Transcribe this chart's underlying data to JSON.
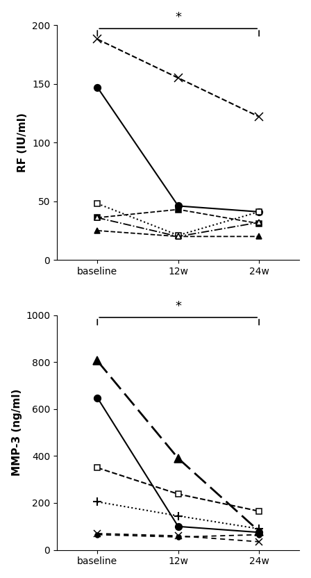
{
  "rf_series": [
    {
      "label": "circle_solid",
      "style": "solid",
      "marker": "o",
      "fillstyle": "full",
      "lw": 1.5,
      "ms": 7,
      "values": [
        147,
        46,
        41
      ]
    },
    {
      "label": "square_filled",
      "style": "dashed",
      "marker": "s",
      "fillstyle": "full",
      "lw": 1.3,
      "ms": 6,
      "values": [
        36,
        43,
        31
      ]
    },
    {
      "label": "square_open",
      "style": "dotted",
      "marker": "s",
      "fillstyle": "none",
      "lw": 1.5,
      "ms": 6,
      "values": [
        48,
        21,
        41
      ]
    },
    {
      "label": "triangle_solid",
      "style": "dashed",
      "marker": "^",
      "fillstyle": "full",
      "lw": 1.3,
      "ms": 6,
      "values": [
        25,
        20,
        20
      ]
    },
    {
      "label": "triangle_open",
      "style": "dashdot",
      "marker": "^",
      "fillstyle": "none",
      "lw": 1.3,
      "ms": 6,
      "values": [
        36,
        20,
        32
      ]
    },
    {
      "label": "x_dashed",
      "style": "dashed",
      "marker": "x",
      "fillstyle": "full",
      "lw": 1.5,
      "ms": 8,
      "values": [
        188,
        155,
        122
      ]
    }
  ],
  "rf_ylim": [
    0,
    200
  ],
  "rf_yticks": [
    0,
    50,
    100,
    150,
    200
  ],
  "rf_ylabel": "RF (IU/ml)",
  "mmp_series": [
    {
      "label": "circle_solid",
      "style": "solid",
      "marker": "o",
      "fillstyle": "full",
      "lw": 1.5,
      "ms": 7,
      "values": [
        648,
        100,
        75
      ]
    },
    {
      "label": "triangle_solid_longdash",
      "style": "longdash",
      "marker": "^",
      "fillstyle": "full",
      "lw": 2.0,
      "ms": 8,
      "values": [
        805,
        390,
        80
      ]
    },
    {
      "label": "square_open_dashed",
      "style": "dashed",
      "marker": "s",
      "fillstyle": "none",
      "lw": 1.5,
      "ms": 6,
      "values": [
        350,
        238,
        165
      ]
    },
    {
      "label": "plus_dotted",
      "style": "dotted",
      "marker": "plus",
      "fillstyle": "full",
      "lw": 1.5,
      "ms": 8,
      "values": [
        205,
        145,
        90
      ]
    },
    {
      "label": "x_dashed_short",
      "style": "shortdash",
      "marker": "x",
      "fillstyle": "full",
      "lw": 1.3,
      "ms": 7,
      "values": [
        70,
        60,
        35
      ]
    },
    {
      "label": "circle_dashed",
      "style": "shortdash",
      "marker": "o",
      "fillstyle": "full",
      "lw": 1.3,
      "ms": 5,
      "values": [
        65,
        55,
        65
      ]
    }
  ],
  "mmp_ylim": [
    0,
    1000
  ],
  "mmp_yticks": [
    0,
    200,
    400,
    600,
    800,
    1000
  ],
  "mmp_ylabel": "MMP-3 (ng/ml)",
  "xtick_labels": [
    "baseline",
    "12w",
    "24w"
  ],
  "color": "#000000",
  "significance_star": "*",
  "figsize": [
    4.48,
    8.32
  ],
  "dpi": 100
}
